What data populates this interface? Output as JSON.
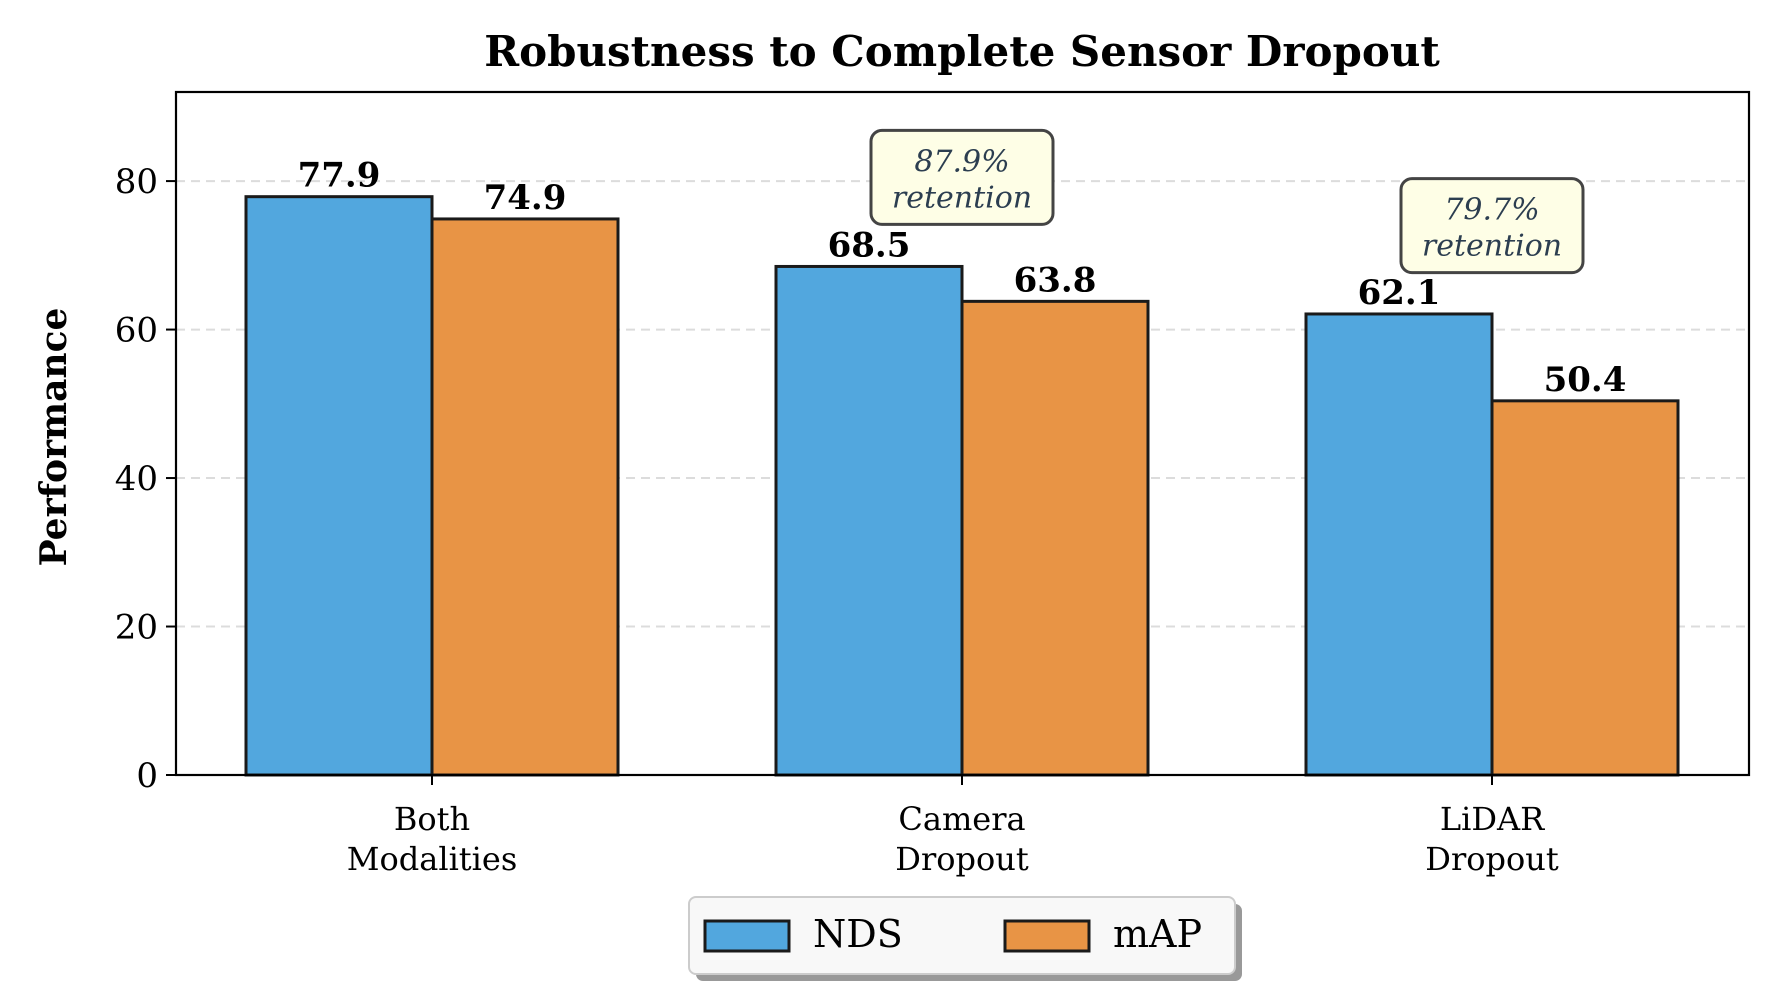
{
  "chart_data": {
    "type": "bar",
    "title": "Robustness to Complete Sensor Dropout",
    "xlabel": "",
    "ylabel": "Performance",
    "ylim": [
      0,
      92
    ],
    "yticks": [
      0,
      20,
      40,
      60,
      80
    ],
    "grid": true,
    "categories": [
      [
        "Both",
        "Modalities"
      ],
      [
        "Camera",
        "Dropout"
      ],
      [
        "LiDAR",
        "Dropout"
      ]
    ],
    "series": [
      {
        "name": "NDS",
        "color": "#52a7de",
        "values": [
          77.9,
          68.5,
          62.1
        ]
      },
      {
        "name": "mAP",
        "color": "#e89445",
        "values": [
          74.9,
          63.8,
          50.4
        ]
      }
    ],
    "value_labels": [
      "77.9",
      "74.9",
      "68.5",
      "63.8",
      "62.1",
      "50.4"
    ],
    "annotations": [
      {
        "category_index": 1,
        "y": 80.5,
        "lines": [
          "87.9%",
          "retention"
        ]
      },
      {
        "category_index": 2,
        "y": 74,
        "lines": [
          "79.7%",
          "retention"
        ]
      }
    ],
    "legend": {
      "placement": "lower-center",
      "entries": [
        "NDS",
        "mAP"
      ]
    }
  }
}
